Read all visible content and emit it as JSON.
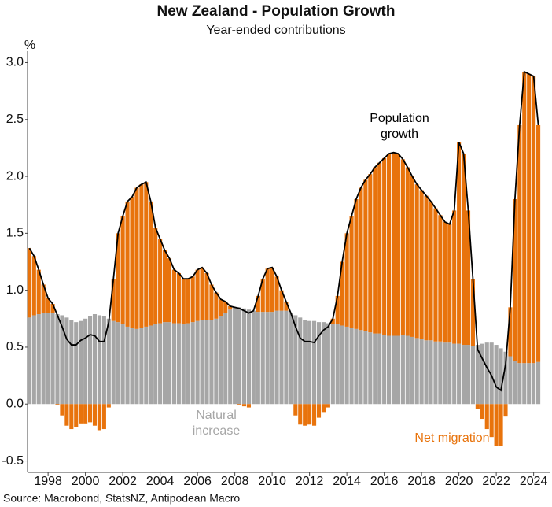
{
  "chart_data": {
    "type": "bar",
    "stacked": true,
    "title": "New Zealand - Population Growth",
    "subtitle": "Year-ended contributions",
    "y_label": "%",
    "source": "Source: Macrobond, StatsNZ, Antipodean Macro",
    "xlim": [
      1996.9,
      2024.9
    ],
    "xticks": [
      1998,
      2000,
      2002,
      2004,
      2006,
      2008,
      2010,
      2012,
      2014,
      2016,
      2018,
      2020,
      2022,
      2024
    ],
    "ylim": [
      -0.6,
      3.1
    ],
    "yticks": [
      -0.5,
      {
        "value": 0,
        "label": "0.0"
      },
      0.5,
      {
        "value": 1,
        "label": "1.0"
      },
      1.5,
      {
        "value": 2,
        "label": "2.0"
      },
      2.5,
      {
        "value": 3,
        "label": "3.0"
      }
    ],
    "grid": false,
    "x": [
      1997,
      1997.25,
      1997.5,
      1997.75,
      1998,
      1998.25,
      1998.5,
      1998.75,
      1999,
      1999.25,
      1999.5,
      1999.75,
      2000,
      2000.25,
      2000.5,
      2000.75,
      2001,
      2001.25,
      2001.5,
      2001.75,
      2002,
      2002.25,
      2002.5,
      2002.75,
      2003,
      2003.25,
      2003.5,
      2003.75,
      2004,
      2004.25,
      2004.5,
      2004.75,
      2005,
      2005.25,
      2005.5,
      2005.75,
      2006,
      2006.25,
      2006.5,
      2006.75,
      2007,
      2007.25,
      2007.5,
      2007.75,
      2008,
      2008.25,
      2008.5,
      2008.75,
      2009,
      2009.25,
      2009.5,
      2009.75,
      2010,
      2010.25,
      2010.5,
      2010.75,
      2011,
      2011.25,
      2011.5,
      2011.75,
      2012,
      2012.25,
      2012.5,
      2012.75,
      2013,
      2013.25,
      2013.5,
      2013.75,
      2014,
      2014.25,
      2014.5,
      2014.75,
      2015,
      2015.25,
      2015.5,
      2015.75,
      2016,
      2016.25,
      2016.5,
      2016.75,
      2017,
      2017.25,
      2017.5,
      2017.75,
      2018,
      2018.25,
      2018.5,
      2018.75,
      2019,
      2019.25,
      2019.5,
      2019.75,
      2020,
      2020.25,
      2020.5,
      2020.75,
      2021,
      2021.25,
      2021.5,
      2021.75,
      2022,
      2022.25,
      2022.5,
      2022.75,
      2023,
      2023.25,
      2023.5,
      2023.75,
      2024,
      2024.25
    ],
    "series": [
      {
        "name": "Natural increase",
        "type": "bar",
        "color": "#a6a6a6",
        "values": [
          0.76,
          0.78,
          0.79,
          0.8,
          0.8,
          0.8,
          0.79,
          0.78,
          0.76,
          0.74,
          0.72,
          0.73,
          0.75,
          0.77,
          0.79,
          0.78,
          0.77,
          0.75,
          0.73,
          0.72,
          0.7,
          0.68,
          0.67,
          0.66,
          0.67,
          0.68,
          0.69,
          0.7,
          0.71,
          0.72,
          0.72,
          0.71,
          0.71,
          0.7,
          0.71,
          0.72,
          0.73,
          0.74,
          0.74,
          0.74,
          0.75,
          0.77,
          0.8,
          0.83,
          0.85,
          0.85,
          0.84,
          0.83,
          0.82,
          0.81,
          0.81,
          0.81,
          0.81,
          0.82,
          0.82,
          0.82,
          0.8,
          0.78,
          0.76,
          0.74,
          0.73,
          0.73,
          0.72,
          0.72,
          0.71,
          0.7,
          0.7,
          0.69,
          0.68,
          0.67,
          0.66,
          0.65,
          0.64,
          0.63,
          0.62,
          0.62,
          0.61,
          0.6,
          0.6,
          0.6,
          0.61,
          0.6,
          0.59,
          0.58,
          0.57,
          0.56,
          0.56,
          0.55,
          0.55,
          0.54,
          0.54,
          0.53,
          0.53,
          0.52,
          0.52,
          0.51,
          0.52,
          0.53,
          0.54,
          0.54,
          0.52,
          0.49,
          0.46,
          0.42,
          0.38,
          0.36,
          0.36,
          0.36,
          0.36,
          0.37
        ]
      },
      {
        "name": "Net migration",
        "type": "bar",
        "color": "#e8730c",
        "values": [
          0.61,
          0.52,
          0.39,
          0.25,
          0.13,
          0.08,
          -0.01,
          -0.1,
          -0.19,
          -0.22,
          -0.2,
          -0.17,
          -0.17,
          -0.16,
          -0.19,
          -0.23,
          -0.22,
          -0.03,
          0.37,
          0.78,
          0.95,
          1.1,
          1.15,
          1.24,
          1.26,
          1.27,
          1.09,
          0.85,
          0.74,
          0.63,
          0.56,
          0.47,
          0.44,
          0.4,
          0.39,
          0.4,
          0.45,
          0.46,
          0.41,
          0.31,
          0.23,
          0.15,
          0.1,
          0.03,
          0,
          -0.01,
          -0.02,
          -0.03,
          0,
          0.14,
          0.29,
          0.38,
          0.39,
          0.3,
          0.18,
          0.08,
          0,
          -0.1,
          -0.18,
          -0.19,
          -0.18,
          -0.19,
          -0.12,
          -0.07,
          -0.03,
          0.05,
          0.25,
          0.56,
          0.82,
          0.98,
          1.14,
          1.25,
          1.33,
          1.39,
          1.46,
          1.5,
          1.55,
          1.6,
          1.61,
          1.6,
          1.54,
          1.48,
          1.41,
          1.35,
          1.31,
          1.27,
          1.22,
          1.17,
          1.11,
          1.06,
          1.04,
          1.17,
          1.77,
          1.68,
          1.18,
          0.59,
          -0.04,
          -0.13,
          -0.22,
          -0.29,
          -0.37,
          -0.37,
          -0.11,
          0.43,
          1.42,
          2.09,
          2.56,
          2.54,
          2.52,
          2.08
        ]
      },
      {
        "name": "Population growth",
        "type": "line",
        "color": "#000000",
        "values": [
          1.37,
          1.3,
          1.18,
          1.05,
          0.93,
          0.88,
          0.78,
          0.68,
          0.57,
          0.52,
          0.52,
          0.56,
          0.58,
          0.61,
          0.6,
          0.55,
          0.55,
          0.72,
          1.1,
          1.5,
          1.65,
          1.78,
          1.82,
          1.9,
          1.93,
          1.95,
          1.78,
          1.55,
          1.45,
          1.35,
          1.28,
          1.18,
          1.15,
          1.1,
          1.1,
          1.12,
          1.18,
          1.2,
          1.15,
          1.05,
          0.98,
          0.92,
          0.9,
          0.86,
          0.85,
          0.84,
          0.82,
          0.8,
          0.82,
          0.95,
          1.1,
          1.19,
          1.2,
          1.12,
          1.0,
          0.9,
          0.8,
          0.68,
          0.58,
          0.55,
          0.55,
          0.54,
          0.6,
          0.65,
          0.68,
          0.75,
          0.95,
          1.25,
          1.5,
          1.65,
          1.8,
          1.9,
          1.97,
          2.02,
          2.08,
          2.12,
          2.16,
          2.2,
          2.21,
          2.2,
          2.15,
          2.08,
          2.0,
          1.93,
          1.88,
          1.83,
          1.78,
          1.72,
          1.66,
          1.6,
          1.58,
          1.7,
          2.3,
          2.2,
          1.7,
          1.1,
          0.48,
          0.4,
          0.32,
          0.25,
          0.15,
          0.12,
          0.35,
          0.85,
          1.8,
          2.45,
          2.92,
          2.9,
          2.88,
          2.45
        ]
      }
    ]
  }
}
